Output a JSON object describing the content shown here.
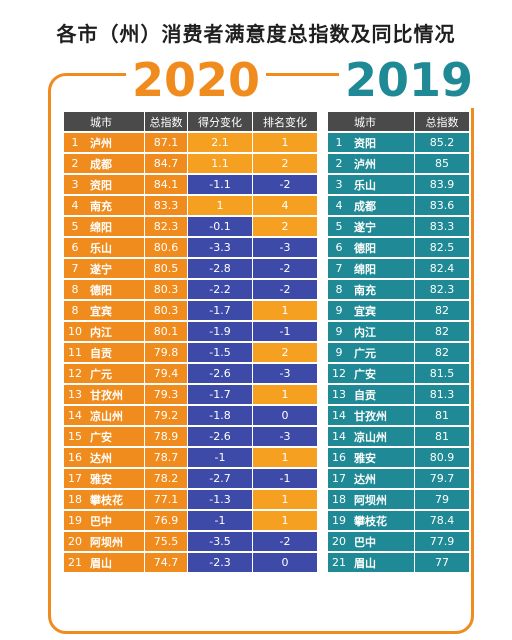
{
  "title": "各市（州）消费者满意度总指数及同比情况",
  "year_left": "2020",
  "year_right": "2019",
  "colors": {
    "orange": "#f08c1e",
    "teal": "#1f8a95",
    "header": "#4a4a4a",
    "negative": "#3e4aa8",
    "positive": "#f5a020"
  },
  "chart_data": [
    {
      "type": "table",
      "title": "2020",
      "headers": [
        "城市",
        "总指数",
        "得分变化",
        "排名变化"
      ],
      "rows": [
        {
          "rank": "1",
          "city": "泸州",
          "score": "87.1",
          "change": "2.1",
          "rank_change": "1"
        },
        {
          "rank": "2",
          "city": "成都",
          "score": "84.7",
          "change": "1.1",
          "rank_change": "2"
        },
        {
          "rank": "3",
          "city": "资阳",
          "score": "84.1",
          "change": "-1.1",
          "rank_change": "-2"
        },
        {
          "rank": "4",
          "city": "南充",
          "score": "83.3",
          "change": "1",
          "rank_change": "4"
        },
        {
          "rank": "5",
          "city": "绵阳",
          "score": "82.3",
          "change": "-0.1",
          "rank_change": "2"
        },
        {
          "rank": "6",
          "city": "乐山",
          "score": "80.6",
          "change": "-3.3",
          "rank_change": "-3"
        },
        {
          "rank": "7",
          "city": "遂宁",
          "score": "80.5",
          "change": "-2.8",
          "rank_change": "-2"
        },
        {
          "rank": "8",
          "city": "德阳",
          "score": "80.3",
          "change": "-2.2",
          "rank_change": "-2"
        },
        {
          "rank": "8",
          "city": "宜宾",
          "score": "80.3",
          "change": "-1.7",
          "rank_change": "1"
        },
        {
          "rank": "10",
          "city": "内江",
          "score": "80.1",
          "change": "-1.9",
          "rank_change": "-1"
        },
        {
          "rank": "11",
          "city": "自贡",
          "score": "79.8",
          "change": "-1.5",
          "rank_change": "2"
        },
        {
          "rank": "12",
          "city": "广元",
          "score": "79.4",
          "change": "-2.6",
          "rank_change": "-3"
        },
        {
          "rank": "13",
          "city": "甘孜州",
          "score": "79.3",
          "change": "-1.7",
          "rank_change": "1"
        },
        {
          "rank": "14",
          "city": "凉山州",
          "score": "79.2",
          "change": "-1.8",
          "rank_change": "0"
        },
        {
          "rank": "15",
          "city": "广安",
          "score": "78.9",
          "change": "-2.6",
          "rank_change": "-3"
        },
        {
          "rank": "16",
          "city": "达州",
          "score": "78.7",
          "change": "-1",
          "rank_change": "1"
        },
        {
          "rank": "17",
          "city": "雅安",
          "score": "78.2",
          "change": "-2.7",
          "rank_change": "-1"
        },
        {
          "rank": "18",
          "city": "攀枝花",
          "score": "77.1",
          "change": "-1.3",
          "rank_change": "1"
        },
        {
          "rank": "19",
          "city": "巴中",
          "score": "76.9",
          "change": "-1",
          "rank_change": "1"
        },
        {
          "rank": "20",
          "city": "阿坝州",
          "score": "75.5",
          "change": "-3.5",
          "rank_change": "-2"
        },
        {
          "rank": "21",
          "city": "眉山",
          "score": "74.7",
          "change": "-2.3",
          "rank_change": "0"
        }
      ]
    },
    {
      "type": "table",
      "title": "2019",
      "headers": [
        "城市",
        "总指数"
      ],
      "rows": [
        {
          "rank": "1",
          "city": "资阳",
          "score": "85.2"
        },
        {
          "rank": "2",
          "city": "泸州",
          "score": "85"
        },
        {
          "rank": "3",
          "city": "乐山",
          "score": "83.9"
        },
        {
          "rank": "4",
          "city": "成都",
          "score": "83.6"
        },
        {
          "rank": "5",
          "city": "遂宁",
          "score": "83.3"
        },
        {
          "rank": "6",
          "city": "德阳",
          "score": "82.5"
        },
        {
          "rank": "7",
          "city": "绵阳",
          "score": "82.4"
        },
        {
          "rank": "8",
          "city": "南充",
          "score": "82.3"
        },
        {
          "rank": "9",
          "city": "宜宾",
          "score": "82"
        },
        {
          "rank": "9",
          "city": "内江",
          "score": "82"
        },
        {
          "rank": "9",
          "city": "广元",
          "score": "82"
        },
        {
          "rank": "12",
          "city": "广安",
          "score": "81.5"
        },
        {
          "rank": "13",
          "city": "自贡",
          "score": "81.3"
        },
        {
          "rank": "14",
          "city": "甘孜州",
          "score": "81"
        },
        {
          "rank": "14",
          "city": "凉山州",
          "score": "81"
        },
        {
          "rank": "16",
          "city": "雅安",
          "score": "80.9"
        },
        {
          "rank": "17",
          "city": "达州",
          "score": "79.7"
        },
        {
          "rank": "18",
          "city": "阿坝州",
          "score": "79"
        },
        {
          "rank": "19",
          "city": "攀枝花",
          "score": "78.4"
        },
        {
          "rank": "20",
          "city": "巴中",
          "score": "77.9"
        },
        {
          "rank": "21",
          "city": "眉山",
          "score": "77"
        }
      ]
    }
  ]
}
